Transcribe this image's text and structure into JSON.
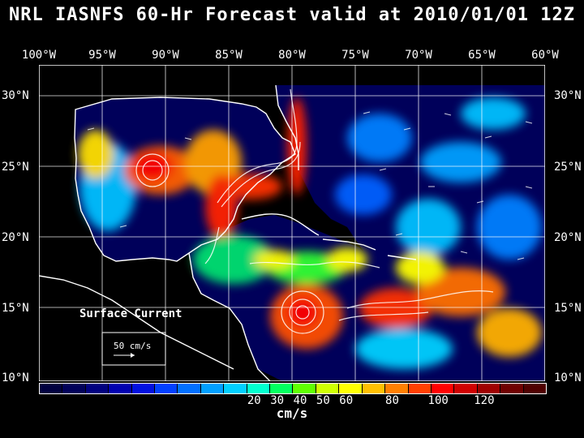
{
  "title": "NRL IASNFS  60-Hr Forecast valid at 2010/01/01 12Z",
  "lon_labels": [
    "100°W",
    "95°W",
    "90°W",
    "85°W",
    "80°W",
    "75°W",
    "70°W",
    "65°W",
    "60°W"
  ],
  "lat_labels": [
    "30°N",
    "25°N",
    "20°N",
    "15°N",
    "10°N"
  ],
  "legend": {
    "title": "Surface Current",
    "scale_label": "50 cm/s"
  },
  "colorbar": {
    "colors": [
      "#000040",
      "#00005a",
      "#000080",
      "#0000b0",
      "#0010e0",
      "#0040ff",
      "#0070ff",
      "#00a0ff",
      "#00d0ff",
      "#00ffd0",
      "#00ff60",
      "#60ff00",
      "#d0ff00",
      "#ffff00",
      "#ffc000",
      "#ff8000",
      "#ff4000",
      "#ff0000",
      "#d00000",
      "#a00000",
      "#700000",
      "#500000"
    ],
    "ticks": [
      {
        "label": "20",
        "value": 20
      },
      {
        "label": "30",
        "value": 30
      },
      {
        "label": "40",
        "value": 40
      },
      {
        "label": "50",
        "value": 50
      },
      {
        "label": "60",
        "value": 60
      },
      {
        "label": "80",
        "value": 80
      },
      {
        "label": "100",
        "value": 100
      },
      {
        "label": "120",
        "value": 120
      }
    ],
    "unit": "cm/s"
  }
}
